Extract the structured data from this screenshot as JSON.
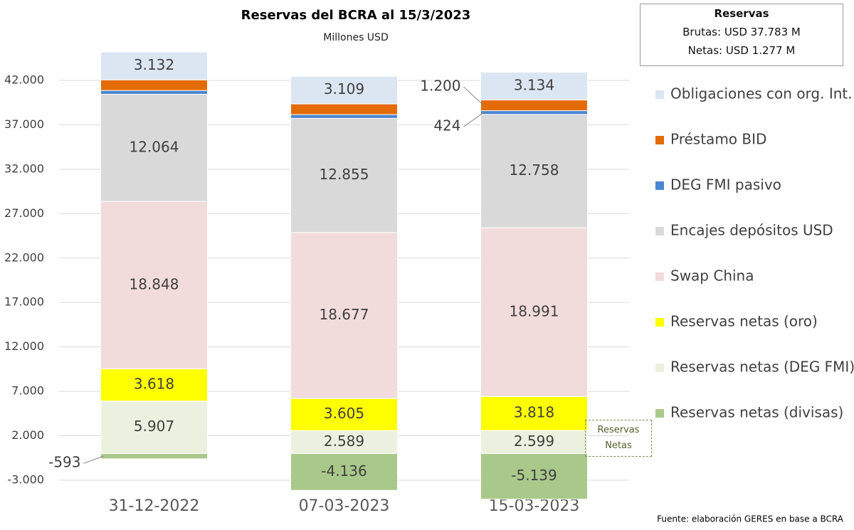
{
  "chart_data": {
    "type": "stacked-bar",
    "title": "Reservas del BCRA al 15/3/2023",
    "subtitle": "Millones USD",
    "categories": [
      "31-12-2022",
      "07-03-2023",
      "15-03-2023"
    ],
    "series": [
      {
        "name": "Reservas netas (divisas)",
        "color": "#a9c98a",
        "values": [
          -593,
          -4136,
          -5139
        ],
        "value_labels": [
          "-593",
          "-4.136",
          "-5.139"
        ]
      },
      {
        "name": "Reservas netas (DEG FMI)",
        "color": "#ebf1de",
        "values": [
          5907,
          2589,
          2599
        ],
        "value_labels": [
          "5.907",
          "2.589",
          "2.599"
        ]
      },
      {
        "name": "Reservas netas (oro)",
        "color": "#ffff00",
        "values": [
          3618,
          3605,
          3818
        ],
        "value_labels": [
          "3.618",
          "3.605",
          "3.818"
        ]
      },
      {
        "name": "Swap China",
        "color": "#f2dcdb",
        "values": [
          18848,
          18677,
          18991
        ],
        "value_labels": [
          "18.848",
          "18.677",
          "18.991"
        ]
      },
      {
        "name": "Encajes depósitos USD",
        "color": "#d9d9d9",
        "values": [
          12064,
          12855,
          12758
        ],
        "value_labels": [
          "12.064",
          "12.855",
          "12.758"
        ]
      },
      {
        "name": "DEG FMI pasivo",
        "color": "#4a86d0",
        "values": [
          424,
          424,
          424
        ],
        "value_labels": [
          null,
          null,
          "424"
        ]
      },
      {
        "name": "Préstamo BID",
        "color": "#e36c09",
        "values": [
          1200,
          1200,
          1200
        ],
        "value_labels": [
          null,
          null,
          "1.200"
        ]
      },
      {
        "name": "Obligaciones con org. Int.",
        "color": "#dce6f2",
        "values": [
          3132,
          3109,
          3134
        ],
        "value_labels": [
          "3.132",
          "3.109",
          "3.134"
        ]
      }
    ],
    "ylim": [
      -3000,
      46000
    ],
    "yticks": [
      {
        "value": -3000,
        "label": "-3.000"
      },
      {
        "value": 2000,
        "label": "2.000"
      },
      {
        "value": 7000,
        "label": "7.000"
      },
      {
        "value": 12000,
        "label": "12.000"
      },
      {
        "value": 17000,
        "label": "17.000"
      },
      {
        "value": 22000,
        "label": "22.000"
      },
      {
        "value": 27000,
        "label": "27.000"
      },
      {
        "value": 32000,
        "label": "32.000"
      },
      {
        "value": 37000,
        "label": "37.000"
      },
      {
        "value": 42000,
        "label": "42.000"
      }
    ],
    "grid": true,
    "info_box": {
      "title": "Reservas",
      "lines": [
        "Brutas: USD 37.783 M",
        "Netas: USD 1.277 M"
      ]
    },
    "annotation": "Reservas Netas",
    "source": "Fuente: elaboración GERES en base a BCRA"
  }
}
